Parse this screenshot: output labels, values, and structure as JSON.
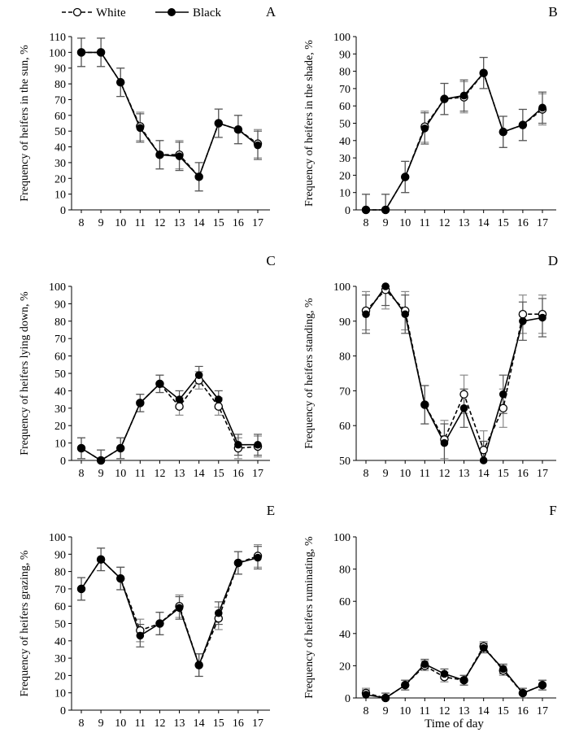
{
  "legend": [
    {
      "name": "White",
      "marker": "open-circle",
      "line": "dashed",
      "color": "#000000"
    },
    {
      "name": "Black",
      "marker": "filled-circle",
      "line": "solid",
      "color": "#000000"
    }
  ],
  "chart_data": [
    {
      "type": "line",
      "panel": "A",
      "ylabel": "Frequency of heifers in the sun, %",
      "xlabel": "",
      "x": [
        8,
        9,
        10,
        11,
        12,
        13,
        14,
        15,
        16,
        17
      ],
      "ylim": [
        0,
        110
      ],
      "ytick_step": 10,
      "series": [
        {
          "name": "White",
          "values": [
            100,
            100,
            81,
            53,
            35,
            35,
            21,
            55,
            51,
            42
          ],
          "error": [
            9,
            9,
            9,
            9,
            9,
            9,
            9,
            9,
            9,
            9
          ]
        },
        {
          "name": "Black",
          "values": [
            100,
            100,
            81,
            52,
            35,
            34,
            21,
            55,
            51,
            41
          ],
          "error": [
            9,
            9,
            9,
            9,
            9,
            9,
            9,
            9,
            9,
            9
          ]
        }
      ]
    },
    {
      "type": "line",
      "panel": "B",
      "ylabel": "Frequency of heifers in the shade, %",
      "xlabel": "",
      "x": [
        8,
        9,
        10,
        11,
        12,
        13,
        14,
        15,
        16,
        17
      ],
      "ylim": [
        0,
        100
      ],
      "ytick_step": 10,
      "series": [
        {
          "name": "White",
          "values": [
            0,
            0,
            19,
            48,
            64,
            65,
            79,
            45,
            49,
            58
          ],
          "error": [
            9,
            9,
            9,
            9,
            9,
            9,
            9,
            9,
            9,
            9
          ]
        },
        {
          "name": "Black",
          "values": [
            0,
            0,
            19,
            47,
            64,
            66,
            79,
            45,
            49,
            59
          ],
          "error": [
            9,
            9,
            9,
            9,
            9,
            9,
            9,
            9,
            9,
            9
          ]
        }
      ]
    },
    {
      "type": "line",
      "panel": "C",
      "ylabel": "Frequency of heifers lying down, %",
      "xlabel": "",
      "x": [
        8,
        9,
        10,
        11,
        12,
        13,
        14,
        15,
        16,
        17
      ],
      "ylim": [
        0,
        100
      ],
      "ytick_step": 10,
      "series": [
        {
          "name": "White",
          "values": [
            7,
            0,
            7,
            33,
            44,
            31,
            46,
            31,
            7,
            8
          ],
          "error": [
            6,
            6,
            6,
            5,
            5,
            5,
            5,
            5,
            6,
            6
          ]
        },
        {
          "name": "Black",
          "values": [
            7,
            0,
            7,
            33,
            44,
            35,
            49,
            35,
            9,
            9
          ],
          "error": [
            6,
            6,
            6,
            5,
            5,
            5,
            5,
            5,
            6,
            6
          ]
        }
      ]
    },
    {
      "type": "line",
      "panel": "D",
      "ylabel": "Frequency of heifers standing, %",
      "xlabel": "",
      "x": [
        8,
        9,
        10,
        11,
        12,
        13,
        14,
        15,
        16,
        17
      ],
      "ylim": [
        50,
        100
      ],
      "ytick_step": 10,
      "series": [
        {
          "name": "White",
          "values": [
            93,
            99,
            93,
            66,
            56,
            69,
            53,
            65,
            92,
            92
          ],
          "error": [
            5.5,
            5.5,
            5.5,
            5.5,
            5.5,
            5.5,
            5.5,
            5.5,
            5.5,
            5.5
          ]
        },
        {
          "name": "Black",
          "values": [
            92,
            100,
            92,
            66,
            55,
            65,
            50,
            69,
            90,
            91
          ],
          "error": [
            5.5,
            5.5,
            5.5,
            5.5,
            5.5,
            5.5,
            5.5,
            5.5,
            5.5,
            5.5
          ]
        }
      ]
    },
    {
      "type": "line",
      "panel": "E",
      "ylabel": "Frequency of heifers grazing, %",
      "xlabel": "",
      "x": [
        8,
        9,
        10,
        11,
        12,
        13,
        14,
        15,
        16,
        17
      ],
      "ylim": [
        0,
        100
      ],
      "ytick_step": 10,
      "series": [
        {
          "name": "White",
          "values": [
            70,
            87,
            76,
            46,
            50,
            60,
            26,
            53,
            85,
            89
          ],
          "error": [
            6.5,
            6.5,
            6.5,
            6.5,
            6.5,
            6.5,
            6.5,
            6.5,
            6.5,
            6.5
          ]
        },
        {
          "name": "Black",
          "values": [
            70,
            87,
            76,
            43,
            50,
            59,
            26,
            56,
            85,
            88
          ],
          "error": [
            6.5,
            6.5,
            6.5,
            6.5,
            6.5,
            6.5,
            6.5,
            6.5,
            6.5,
            6.5
          ]
        }
      ]
    },
    {
      "type": "line",
      "panel": "F",
      "ylabel": "Frequency of heifers ruminating, %",
      "xlabel": "Time of day",
      "x": [
        8,
        9,
        10,
        11,
        12,
        13,
        14,
        15,
        16,
        17
      ],
      "ylim": [
        0,
        100
      ],
      "ytick_step": 20,
      "series": [
        {
          "name": "White",
          "values": [
            3,
            0,
            8,
            20,
            13,
            11,
            32,
            17,
            3,
            8
          ],
          "error": [
            3,
            3,
            3,
            3,
            3,
            3,
            3,
            3,
            3,
            3
          ]
        },
        {
          "name": "Black",
          "values": [
            2,
            0,
            8,
            21,
            15,
            11,
            31,
            18,
            3,
            8
          ],
          "error": [
            3,
            3,
            3,
            3,
            3,
            3,
            3,
            3,
            3,
            3
          ]
        }
      ]
    }
  ]
}
